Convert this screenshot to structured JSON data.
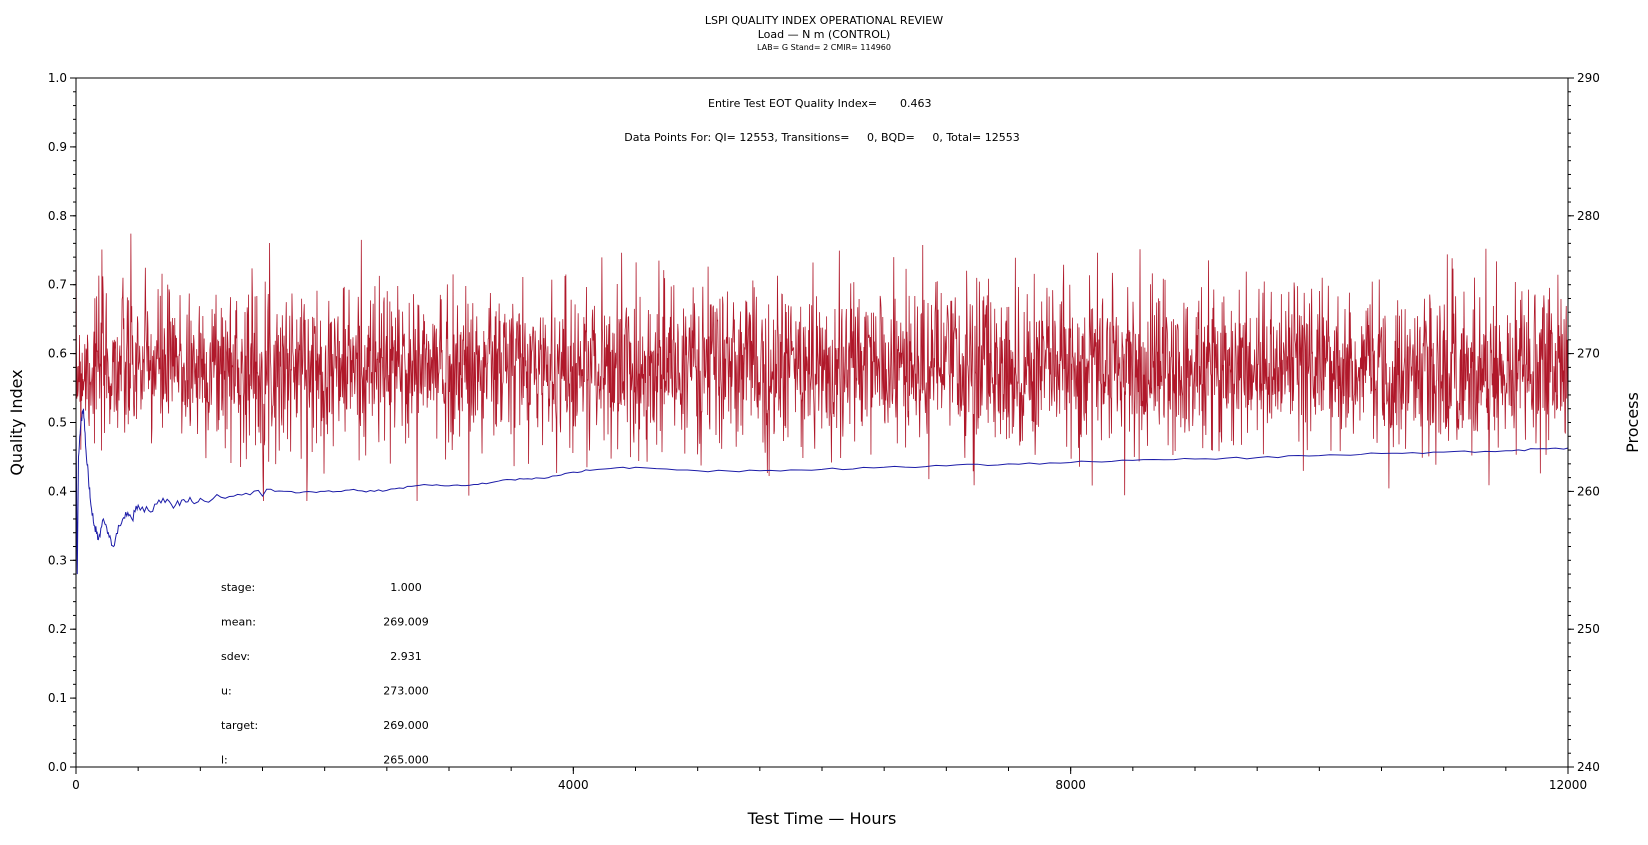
{
  "header": {
    "title": "LSPI QUALITY INDEX OPERATIONAL REVIEW",
    "subtitle": "Load — N m (CONTROL)",
    "info": "LAB= G Stand= 2 CMIR= 114960"
  },
  "annotations": {
    "eot_label": "Entire Test EOT Quality Index=",
    "eot_value": "0.463",
    "datapoints": "Data Points For: QI= 12553, Transitions=     0, BQD=     0, Total= 12553"
  },
  "stats": [
    {
      "label": "stage:",
      "value": "1.000"
    },
    {
      "label": "mean:",
      "value": "269.009"
    },
    {
      "label": "sdev:",
      "value": "2.931"
    },
    {
      "label": "u:",
      "value": "273.000"
    },
    {
      "label": "target:",
      "value": "269.000"
    },
    {
      "label": "l:",
      "value": "265.000"
    }
  ],
  "colors": {
    "process_series": "#b0182a",
    "quality_series": "#1c1ca8",
    "axes": "#000000"
  },
  "chart_data": {
    "type": "line",
    "xlabel": "Test Time — Hours",
    "ylabel_left": "Quality Index",
    "ylabel_right": "Process",
    "xlim": [
      0,
      12000
    ],
    "ylim_left": [
      0,
      1
    ],
    "ylim_right": [
      240,
      290
    ],
    "x_ticks": [
      0,
      4000,
      8000,
      12000
    ],
    "x_tick_labels": [
      "0",
      "4000",
      "8000",
      "12000"
    ],
    "y_left_ticks": [
      0.0,
      0.1,
      0.2,
      0.3,
      0.4,
      0.5,
      0.6,
      0.7,
      0.8,
      0.9,
      1.0
    ],
    "y_left_tick_labels": [
      "0.0",
      "0.1",
      "0.2",
      "0.3",
      "0.4",
      "0.5",
      "0.6",
      "0.7",
      "0.8",
      "0.9",
      "1.0"
    ],
    "y_right_ticks": [
      240,
      250,
      260,
      270,
      280,
      290
    ],
    "y_right_tick_labels": [
      "240",
      "250",
      "260",
      "270",
      "280",
      "290"
    ],
    "grid": false,
    "series": [
      {
        "axis": "right",
        "summary": {
          "points": 12553,
          "mean": 269.009,
          "sdev": 2.931,
          "min": 259.3,
          "max": 282.4
        },
        "x": [
          0,
          500,
          1000,
          1500,
          2000,
          2500,
          3000,
          3500,
          4000,
          4500,
          5000,
          5500,
          6000,
          6500,
          7000,
          7500,
          8000,
          8500,
          9000,
          9500,
          10000,
          10500,
          11000,
          11500,
          12000
        ],
        "values": [
          269.0,
          268.8,
          269.2,
          268.7,
          269.1,
          269.3,
          268.9,
          269.0,
          269.2,
          268.8,
          269.1,
          269.0,
          268.9,
          269.2,
          269.0,
          268.8,
          269.1,
          269.0,
          269.2,
          268.9,
          269.0,
          269.1,
          268.9,
          269.0,
          269.0
        ]
      },
      {
        "axis": "left",
        "x": [
          0,
          10,
          20,
          40,
          60,
          80,
          100,
          120,
          150,
          180,
          220,
          260,
          300,
          350,
          400,
          450,
          500,
          600,
          700,
          800,
          900,
          1000,
          1200,
          1400,
          1600,
          1800,
          2000,
          2200,
          2400,
          2600,
          2800,
          3000,
          3200,
          3400,
          3600,
          3800,
          4000,
          4200,
          4500,
          5000,
          5500,
          6000,
          6500,
          7000,
          7500,
          8000,
          8500,
          9000,
          9500,
          10000,
          10500,
          11000,
          11500,
          11800,
          12000
        ],
        "values": [
          0.5,
          0.28,
          0.45,
          0.5,
          0.52,
          0.46,
          0.42,
          0.38,
          0.35,
          0.33,
          0.36,
          0.34,
          0.32,
          0.35,
          0.37,
          0.36,
          0.38,
          0.37,
          0.39,
          0.38,
          0.385,
          0.39,
          0.39,
          0.395,
          0.4,
          0.398,
          0.4,
          0.402,
          0.4,
          0.405,
          0.41,
          0.408,
          0.41,
          0.415,
          0.418,
          0.42,
          0.428,
          0.432,
          0.435,
          0.43,
          0.43,
          0.432,
          0.435,
          0.437,
          0.44,
          0.442,
          0.445,
          0.447,
          0.449,
          0.452,
          0.455,
          0.457,
          0.459,
          0.462,
          0.463
        ]
      }
    ]
  }
}
